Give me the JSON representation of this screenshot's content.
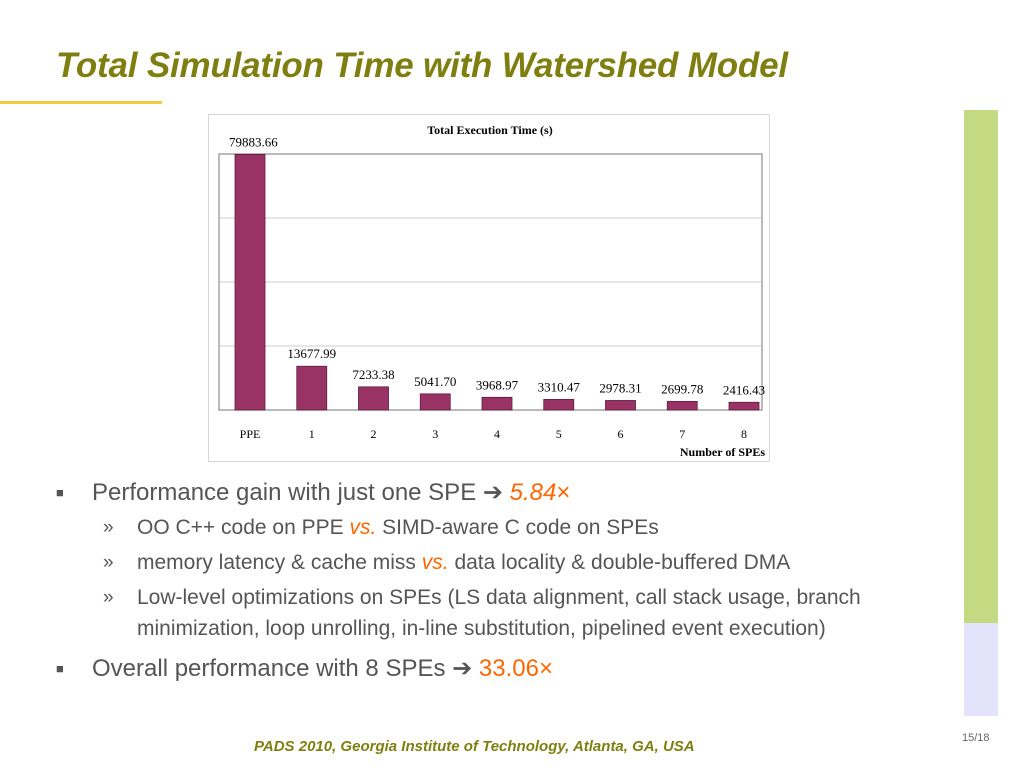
{
  "slide": {
    "title": "Total Simulation Time with Watershed Model",
    "footer": "PADS 2010, Georgia Institute of Technology, Atlanta, GA, USA",
    "page_number": "15/18",
    "colors": {
      "title": "#7f7f11",
      "underline": "#f5c842",
      "side_bar_top": "#c3d982",
      "side_bar_bottom": "#e3e3fb",
      "emphasis": "#ff6600",
      "bar": "#993366"
    }
  },
  "bullets": [
    {
      "text": "Performance gain with just one SPE ",
      "arrow": "➔",
      "value": "5.84",
      "times": "×",
      "sub": [
        {
          "a": "OO C++ code on PPE ",
          "vs": "vs.",
          "b": " SIMD-aware C code on SPEs"
        },
        {
          "a": "memory latency & cache miss ",
          "vs": "vs.",
          "b": " data locality & double-buffered DMA"
        },
        {
          "a": "Low-level optimizations on SPEs (LS data alignment, call stack usage, branch minimization, loop unrolling, in-line substitution, pipelined event execution)",
          "vs": "",
          "b": ""
        }
      ]
    },
    {
      "text": "Overall performance with 8 SPEs ",
      "arrow": "➔",
      "value": "33.06",
      "times": "×",
      "sub": []
    }
  ],
  "chart_data": {
    "type": "bar",
    "title": "Total Execution Time (s)",
    "xlabel": "Number of SPEs",
    "ylabel": "",
    "categories": [
      "PPE",
      "1",
      "2",
      "3",
      "4",
      "5",
      "6",
      "7",
      "8"
    ],
    "values": [
      79883.66,
      13677.99,
      7233.38,
      5041.7,
      3968.97,
      3310.47,
      2978.31,
      2699.78,
      2416.43
    ],
    "value_labels": [
      "79883.66",
      "13677.99",
      "7233.38",
      "5041.70",
      "3968.97",
      "3310.47",
      "2978.31",
      "2699.78",
      "2416.43"
    ],
    "ylim": [
      0,
      80000
    ],
    "grid": true,
    "legend": "none",
    "bar_color": "#993366"
  }
}
